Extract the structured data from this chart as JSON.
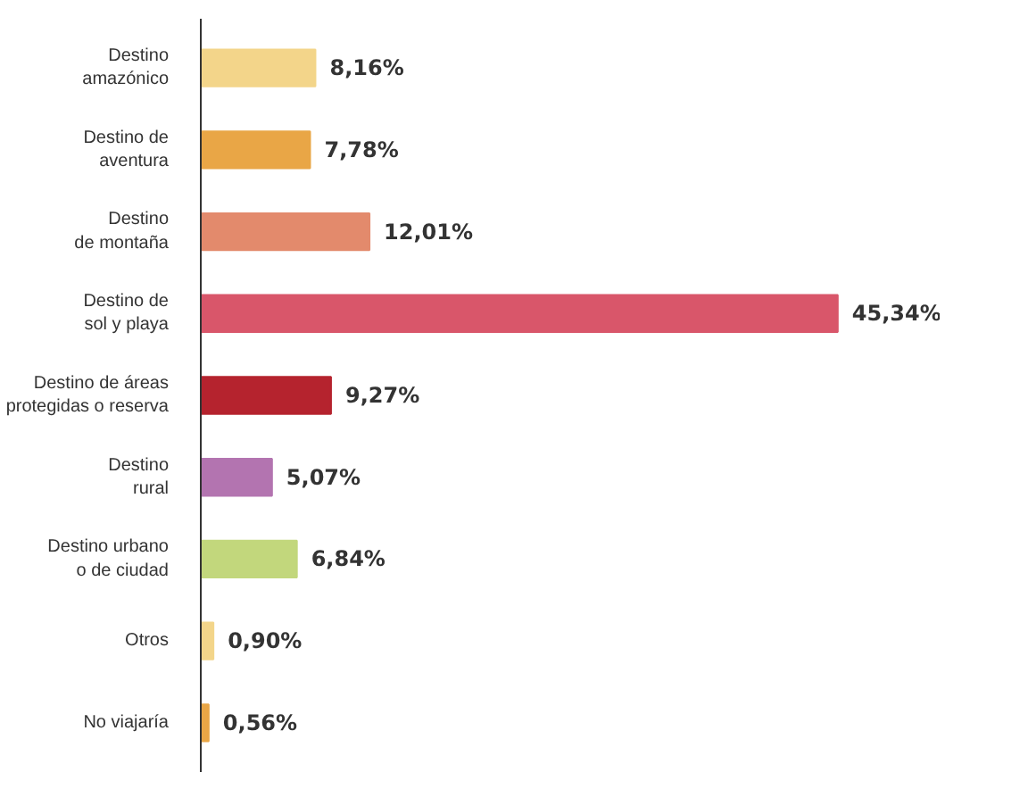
{
  "chart_data": {
    "type": "bar",
    "orientation": "horizontal",
    "categories": [
      "Destino amazónico",
      "Destino de aventura",
      "Destino de montaña",
      "Destino de sol y playa",
      "Destino de áreas protegidas o reserva",
      "Destino rural",
      "Destino urbano o de ciudad",
      "Otros",
      "No viajaría"
    ],
    "values": [
      8.16,
      7.78,
      12.01,
      45.34,
      9.27,
      5.07,
      6.84,
      0.9,
      0.56
    ],
    "colors": [
      "#f3d58a",
      "#e9a646",
      "#e38a6c",
      "#d9566a",
      "#b5232e",
      "#b374b0",
      "#c2d77c",
      "#f3d58a",
      "#e9a646"
    ],
    "value_labels": [
      "8,16%",
      "7,78%",
      "12,01%",
      "45,34%",
      "9,27%",
      "5,07%",
      "6,84%",
      "0,90%",
      "0,56%"
    ],
    "grid": false
  }
}
